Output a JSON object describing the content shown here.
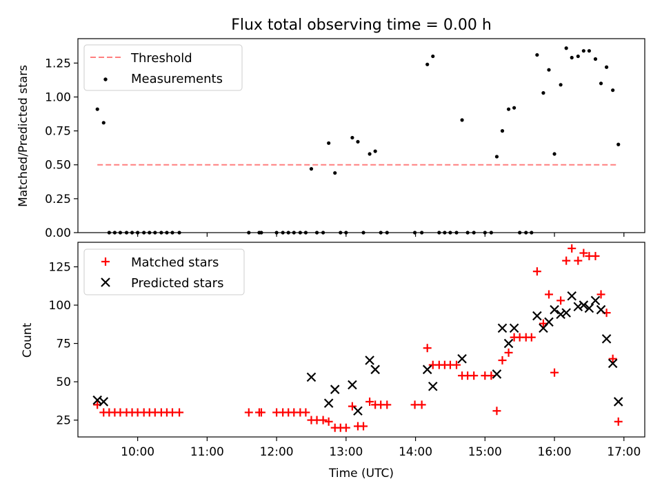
{
  "chart_data": [
    {
      "type": "scatter",
      "title": "Flux total observing time = 0.00 h",
      "xlabel": "",
      "ylabel": "Matched/Predicted stars",
      "xlim": [
        9.14,
        17.3
      ],
      "ylim": [
        0.0,
        1.43
      ],
      "y_ticks": [
        "0.00",
        "0.25",
        "0.50",
        "0.75",
        "1.00",
        "1.25"
      ],
      "legend_position": "upper left",
      "legend": [
        "Threshold",
        "Measurements"
      ],
      "threshold": {
        "name": "Threshold",
        "value": 0.5,
        "x_range": [
          9.42,
          16.92
        ],
        "color": "#ff7f7f"
      },
      "series": [
        {
          "name": "Measurements",
          "color": "#000000",
          "points": [
            [
              9.42,
              0.91
            ],
            [
              9.51,
              0.81
            ],
            [
              9.59,
              0
            ],
            [
              9.67,
              0
            ],
            [
              9.75,
              0
            ],
            [
              9.84,
              0
            ],
            [
              9.92,
              0
            ],
            [
              10.0,
              0
            ],
            [
              10.09,
              0
            ],
            [
              10.17,
              0
            ],
            [
              10.25,
              0
            ],
            [
              10.34,
              0
            ],
            [
              10.42,
              0
            ],
            [
              10.5,
              0
            ],
            [
              10.6,
              0
            ],
            [
              11.6,
              0
            ],
            [
              11.75,
              0
            ],
            [
              11.78,
              0
            ],
            [
              12.0,
              0
            ],
            [
              12.09,
              0
            ],
            [
              12.17,
              0
            ],
            [
              12.25,
              0
            ],
            [
              12.34,
              0
            ],
            [
              12.42,
              0
            ],
            [
              12.5,
              0.47
            ],
            [
              12.58,
              0
            ],
            [
              12.67,
              0
            ],
            [
              12.75,
              0.66
            ],
            [
              12.84,
              0.44
            ],
            [
              12.92,
              0
            ],
            [
              13.0,
              0
            ],
            [
              13.09,
              0.7
            ],
            [
              13.17,
              0.67
            ],
            [
              13.25,
              0
            ],
            [
              13.34,
              0.58
            ],
            [
              13.42,
              0.6
            ],
            [
              13.5,
              0
            ],
            [
              13.59,
              0
            ],
            [
              13.99,
              0
            ],
            [
              14.09,
              0
            ],
            [
              14.17,
              1.24
            ],
            [
              14.25,
              1.3
            ],
            [
              14.34,
              0
            ],
            [
              14.42,
              0
            ],
            [
              14.5,
              0
            ],
            [
              14.59,
              0
            ],
            [
              14.67,
              0.83
            ],
            [
              14.75,
              0
            ],
            [
              14.84,
              0
            ],
            [
              15.0,
              0
            ],
            [
              15.09,
              0
            ],
            [
              15.17,
              0.56
            ],
            [
              15.25,
              0.75
            ],
            [
              15.34,
              0.91
            ],
            [
              15.42,
              0.92
            ],
            [
              15.5,
              0
            ],
            [
              15.59,
              0
            ],
            [
              15.67,
              0
            ],
            [
              15.75,
              1.31
            ],
            [
              15.84,
              1.03
            ],
            [
              15.92,
              1.2
            ],
            [
              16.0,
              0.58
            ],
            [
              16.09,
              1.09
            ],
            [
              16.17,
              1.36
            ],
            [
              16.25,
              1.29
            ],
            [
              16.34,
              1.3
            ],
            [
              16.42,
              1.34
            ],
            [
              16.5,
              1.34
            ],
            [
              16.59,
              1.28
            ],
            [
              16.67,
              1.1
            ],
            [
              16.75,
              1.22
            ],
            [
              16.84,
              1.05
            ],
            [
              16.92,
              0.65
            ]
          ]
        }
      ]
    },
    {
      "type": "scatter",
      "title": "",
      "xlabel": "Time (UTC)",
      "ylabel": "Count",
      "xlim": [
        9.14,
        17.3
      ],
      "ylim": [
        14,
        141
      ],
      "x_ticks": [
        "10:00",
        "11:00",
        "12:00",
        "13:00",
        "14:00",
        "15:00",
        "16:00",
        "17:00"
      ],
      "y_ticks": [
        "25",
        "50",
        "75",
        "100",
        "125"
      ],
      "legend_position": "upper left",
      "legend": [
        "Matched stars",
        "Predicted stars"
      ],
      "series": [
        {
          "name": "Matched stars",
          "marker": "+",
          "color": "#ff0000",
          "points": [
            [
              9.42,
              35
            ],
            [
              9.51,
              30
            ],
            [
              9.59,
              30
            ],
            [
              9.67,
              30
            ],
            [
              9.75,
              30
            ],
            [
              9.84,
              30
            ],
            [
              9.92,
              30
            ],
            [
              10.0,
              30
            ],
            [
              10.09,
              30
            ],
            [
              10.17,
              30
            ],
            [
              10.25,
              30
            ],
            [
              10.34,
              30
            ],
            [
              10.42,
              30
            ],
            [
              10.5,
              30
            ],
            [
              10.6,
              30
            ],
            [
              11.6,
              30
            ],
            [
              11.75,
              30
            ],
            [
              11.78,
              30
            ],
            [
              12.0,
              30
            ],
            [
              12.09,
              30
            ],
            [
              12.17,
              30
            ],
            [
              12.25,
              30
            ],
            [
              12.34,
              30
            ],
            [
              12.42,
              30
            ],
            [
              12.5,
              25
            ],
            [
              12.58,
              25
            ],
            [
              12.67,
              25
            ],
            [
              12.75,
              24
            ],
            [
              12.84,
              20
            ],
            [
              12.92,
              20
            ],
            [
              13.0,
              20
            ],
            [
              13.09,
              34
            ],
            [
              13.17,
              21
            ],
            [
              13.25,
              21
            ],
            [
              13.34,
              37
            ],
            [
              13.42,
              35
            ],
            [
              13.5,
              35
            ],
            [
              13.59,
              35
            ],
            [
              13.99,
              35
            ],
            [
              14.09,
              35
            ],
            [
              14.17,
              72
            ],
            [
              14.25,
              61
            ],
            [
              14.34,
              61
            ],
            [
              14.42,
              61
            ],
            [
              14.5,
              61
            ],
            [
              14.59,
              61
            ],
            [
              14.67,
              54
            ],
            [
              14.75,
              54
            ],
            [
              14.84,
              54
            ],
            [
              15.0,
              54
            ],
            [
              15.09,
              54
            ],
            [
              15.17,
              31
            ],
            [
              15.25,
              64
            ],
            [
              15.34,
              69
            ],
            [
              15.42,
              79
            ],
            [
              15.5,
              79
            ],
            [
              15.59,
              79
            ],
            [
              15.67,
              79
            ],
            [
              15.75,
              122
            ],
            [
              15.84,
              88
            ],
            [
              15.92,
              107
            ],
            [
              16.0,
              56
            ],
            [
              16.09,
              103
            ],
            [
              16.17,
              129
            ],
            [
              16.25,
              137
            ],
            [
              16.34,
              129
            ],
            [
              16.42,
              134
            ],
            [
              16.5,
              132
            ],
            [
              16.59,
              132
            ],
            [
              16.67,
              107
            ],
            [
              16.75,
              95
            ],
            [
              16.84,
              65
            ],
            [
              16.92,
              24
            ]
          ]
        },
        {
          "name": "Predicted stars",
          "marker": "x",
          "color": "#000000",
          "points": [
            [
              9.42,
              38
            ],
            [
              9.51,
              37
            ],
            [
              12.5,
              53
            ],
            [
              12.75,
              36
            ],
            [
              12.84,
              45
            ],
            [
              13.09,
              48
            ],
            [
              13.17,
              31
            ],
            [
              13.34,
              64
            ],
            [
              13.42,
              58
            ],
            [
              14.17,
              58
            ],
            [
              14.25,
              47
            ],
            [
              14.67,
              65
            ],
            [
              15.17,
              55
            ],
            [
              15.25,
              85
            ],
            [
              15.34,
              75
            ],
            [
              15.42,
              85
            ],
            [
              15.75,
              93
            ],
            [
              15.84,
              85
            ],
            [
              15.92,
              89
            ],
            [
              16.0,
              97
            ],
            [
              16.09,
              94
            ],
            [
              16.17,
              95
            ],
            [
              16.25,
              106
            ],
            [
              16.34,
              99
            ],
            [
              16.42,
              100
            ],
            [
              16.5,
              98
            ],
            [
              16.59,
              103
            ],
            [
              16.67,
              97
            ],
            [
              16.75,
              78
            ],
            [
              16.84,
              62
            ],
            [
              16.92,
              37
            ]
          ]
        }
      ]
    }
  ]
}
